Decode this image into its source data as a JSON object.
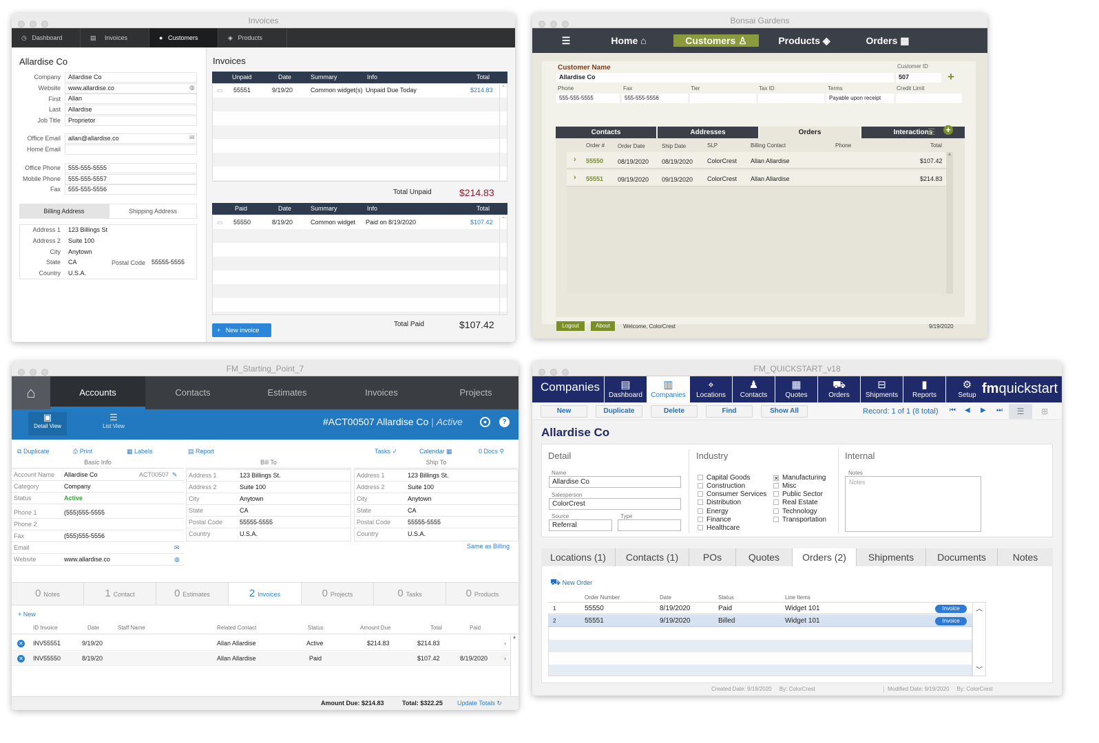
{
  "w1": {
    "title": "Invoices",
    "nav": [
      {
        "label": "Dashboard",
        "icon": "dashboard-icon"
      },
      {
        "label": "Invoices",
        "icon": "calculator-icon"
      },
      {
        "label": "Customers",
        "icon": "person-icon"
      },
      {
        "label": "Products",
        "icon": "box-icon"
      }
    ],
    "customer_name": "Allardise Co",
    "fields": {
      "company_label": "Company",
      "company": "Allardise Co",
      "website_label": "Website",
      "website": "www.allardise.co",
      "first_label": "First",
      "first": "Allan",
      "last_label": "Last",
      "last": "Allardise",
      "jobtitle_label": "Job Title",
      "jobtitle": "Proprietor",
      "officeemail_label": "Office Email",
      "officeemail": "allan@allardise.co",
      "homeemail_label": "Home Email",
      "homeemail": "",
      "officephone_label": "Office Phone",
      "officephone": "555-555-5555",
      "mobilephone_label": "Mobile Phone",
      "mobilephone": "555-555-5557",
      "fax_label": "Fax",
      "fax": "555-555-5556"
    },
    "addr_tabs": [
      "Billing Address",
      "Shipping Address"
    ],
    "address": {
      "a1_label": "Address 1",
      "a1": "123 Billings St",
      "a2_label": "Address 2",
      "a2": "Suite 100",
      "city_label": "City",
      "city": "Anytown",
      "state_label": "State",
      "state": "CA",
      "postal_label": "Postal Code",
      "postal": "55555-5555",
      "country_label": "Country",
      "country": "U.S.A."
    },
    "invoices_heading": "Invoices",
    "unpaid_cols": [
      "Unpaid",
      "Date",
      "Summary",
      "Info",
      "Total"
    ],
    "unpaid_row": {
      "num": "55551",
      "date": "9/19/20",
      "summary": "Common widget(s)",
      "info": "Unpaid Due Today",
      "total": "$214.83"
    },
    "total_unpaid_label": "Total Unpaid",
    "total_unpaid": "$214.83",
    "paid_cols": [
      "Paid",
      "Date",
      "Summary",
      "Info",
      "Total"
    ],
    "paid_row": {
      "num": "55550",
      "date": "8/19/20",
      "summary": "Common widget",
      "info": "Paid on 8/19/2020",
      "total": "$107.42"
    },
    "total_paid_label": "Total Paid",
    "total_paid": "$107.42",
    "new_invoice": "New invoice"
  },
  "w2": {
    "title": "Bonsai Gardens",
    "nav": [
      "Home",
      "Customers",
      "Products",
      "Orders"
    ],
    "customer_name_label": "Customer Name",
    "customer_name": "Allardise Co",
    "customer_id_label": "Customer ID",
    "customer_id": "507",
    "phone_label": "Phone",
    "phone": "555-555-5555",
    "fax_label": "Fax",
    "fax": "555-555-5556",
    "tier_label": "Tier",
    "taxid_label": "Tax ID",
    "terms_label": "Terms",
    "terms": "Payable upon receipt",
    "credit_label": "Credit Limit",
    "tabs": [
      "Contacts",
      "Addresses",
      "Orders",
      "Interactions"
    ],
    "cols": [
      "Order #",
      "Order Date",
      "Ship Date",
      "SLP",
      "Billing Contact",
      "Phone",
      "Total"
    ],
    "rows": [
      {
        "num": "55550",
        "odate": "08/19/2020",
        "sdate": "08/19/2020",
        "slp": "ColorCrest",
        "contact": "Allan Allardise",
        "phone": "",
        "total": "$107.42"
      },
      {
        "num": "55551",
        "odate": "09/19/2020",
        "sdate": "09/19/2020",
        "slp": "ColorCrest",
        "contact": "Allan Allardise",
        "phone": "",
        "total": "$214.83"
      }
    ],
    "logout": "Logout",
    "about": "About",
    "welcome": "Welcome, ColorCrest",
    "date": "9/19/2020"
  },
  "w3": {
    "title": "FM_Starting_Point_7",
    "nav": [
      "Accounts",
      "Contacts",
      "Estimates",
      "Invoices",
      "Projects"
    ],
    "views": [
      "Detail View",
      "List View"
    ],
    "record_id": "#ACT00507 Allardise Co",
    "record_sep": "|",
    "record_status": "Active",
    "tools": [
      "Duplicate",
      "Print",
      "Labels",
      "Report",
      "Tasks",
      "Calendar",
      "0 Docs"
    ],
    "sections": [
      "Basic Info",
      "Bill To",
      "Ship To"
    ],
    "basic": [
      {
        "l": "Account Name",
        "v": "Allardise Co"
      },
      {
        "l": "Category",
        "v": "Company"
      },
      {
        "l": "Status",
        "v": "Active"
      },
      {
        "l": "Phone 1",
        "v": "(555)555-5555"
      },
      {
        "l": "Phone 2",
        "v": ""
      },
      {
        "l": "Fax",
        "v": "(555)555-5556"
      },
      {
        "l": "Email",
        "v": ""
      },
      {
        "l": "Website",
        "v": "www.allardise.co"
      }
    ],
    "account_code": "ACT00507",
    "billto": [
      {
        "l": "Address 1",
        "v": "123 Billings St."
      },
      {
        "l": "Address 2",
        "v": "Suite 100"
      },
      {
        "l": "City",
        "v": "Anytown"
      },
      {
        "l": "State",
        "v": "CA"
      },
      {
        "l": "Postal Code",
        "v": "55555-5555"
      },
      {
        "l": "Country",
        "v": "U.S.A."
      }
    ],
    "shipto": [
      {
        "l": "Address 1",
        "v": "123 Billings St."
      },
      {
        "l": "Address 2",
        "v": "Suite 100"
      },
      {
        "l": "City",
        "v": "Anytown"
      },
      {
        "l": "State",
        "v": "CA"
      },
      {
        "l": "Postal Code",
        "v": "55555-5555"
      },
      {
        "l": "Country",
        "v": "U.S.A."
      }
    ],
    "same_as_billing": "Same as Billing",
    "counts": [
      {
        "n": "0",
        "l": "Notes"
      },
      {
        "n": "1",
        "l": "Contact"
      },
      {
        "n": "0",
        "l": "Estimates"
      },
      {
        "n": "2",
        "l": "Invoices"
      },
      {
        "n": "0",
        "l": "Projects"
      },
      {
        "n": "0",
        "l": "Tasks"
      },
      {
        "n": "0",
        "l": "Products"
      }
    ],
    "new_label": "New",
    "cols": [
      "ID Invoice",
      "Date",
      "Staff Name",
      "Related Contact",
      "Status",
      "Amount Due",
      "Total",
      "Paid"
    ],
    "rows": [
      {
        "id": "INV55551",
        "date": "9/19/20",
        "staff": "",
        "contact": "Allan Allardise",
        "status": "Active",
        "due": "$214.83",
        "total": "$214.83",
        "paid": ""
      },
      {
        "id": "INV55550",
        "date": "8/19/20",
        "staff": "",
        "contact": "Allan Allardise",
        "status": "Paid",
        "due": "",
        "total": "$107.42",
        "paid": "8/19/2020"
      }
    ],
    "amount_due": "Amount Due: $214.83",
    "total": "Total: $322.25",
    "update_totals": "Update Totals"
  },
  "w4": {
    "title": "FM_QUICKSTART_v18",
    "section": "Companies",
    "nav": [
      "Dashboard",
      "Companies",
      "Locations",
      "Contacts",
      "Quotes",
      "Orders",
      "Shipments",
      "Reports",
      "Setup"
    ],
    "brand_bold": "fm",
    "brand": "quickstart",
    "buttons": [
      "New",
      "Duplicate",
      "Delete",
      "Find",
      "Show All"
    ],
    "record": "Record:",
    "record_pos": "1",
    "record_of": "of 1 (8 total)",
    "company_name": "Allardise Co",
    "detail_heading": "Detail",
    "industry_heading": "Industry",
    "internal_heading": "Internal",
    "name_label": "Name",
    "name": "Allardise Co",
    "salesperson_label": "Salesperson",
    "salesperson": "ColorCrest",
    "source_label": "Source",
    "source": "Referral",
    "type_label": "Type",
    "type": "",
    "industries_a": [
      "Capital Goods",
      "Construction",
      "Consumer Services",
      "Distribution",
      "Energy",
      "Finance",
      "Healthcare"
    ],
    "industries_b": [
      "Manufacturing",
      "Misc",
      "Public Sector",
      "Real Estate",
      "Technology",
      "Transportation"
    ],
    "notes_label": "Notes",
    "notes_placeholder": "Notes",
    "tabs": [
      "Locations (1)",
      "Contacts (1)",
      "POs",
      "Quotes",
      "Orders (2)",
      "Shipments",
      "Documents",
      "Notes"
    ],
    "new_order": "New Order",
    "cols": [
      "Order Number",
      "Date",
      "Status",
      "Line Items"
    ],
    "rows": [
      {
        "n": "1",
        "num": "55550",
        "date": "8/19/2020",
        "status": "Paid",
        "items": "Widget 101",
        "btn": "Invoice"
      },
      {
        "n": "2",
        "num": "55551",
        "date": "9/19/2020",
        "status": "Billed",
        "items": "Widget 101",
        "btn": "Invoice"
      }
    ],
    "created": "Created Date: 9/19/2020",
    "created_by": "By: ColorCrest",
    "modified": "Modified Date: 9/19/2020",
    "modified_by": "By: ColorCrest"
  },
  "colors": {
    "navy": "#2e3b4e",
    "olive": "#8a9a3c",
    "blue": "#2379c0",
    "fmnavy": "#1f2a6b"
  }
}
